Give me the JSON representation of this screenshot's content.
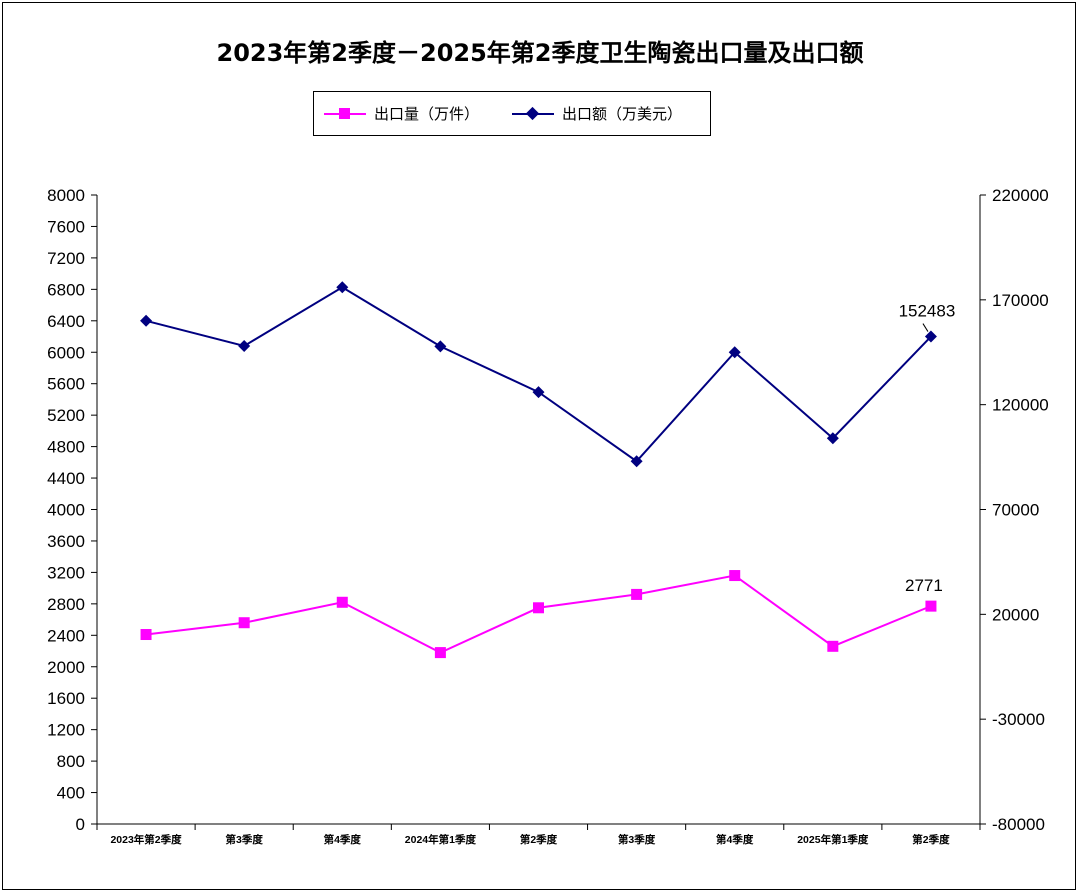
{
  "chart_data": {
    "type": "line",
    "title": "2023年第2季度－2025年第2季度卫生陶瓷出口量及出口额",
    "categories": [
      "2023年第2季度",
      "第3季度",
      "第4季度",
      "2024年第1季度",
      "第2季度",
      "第3季度",
      "第4季度",
      "2025年第1季度",
      "第2季度"
    ],
    "series": [
      {
        "name": "出口量（万件）",
        "axis": "left",
        "color": "#FF00FF",
        "marker": "square",
        "values": [
          2410,
          2560,
          2820,
          2180,
          2750,
          2920,
          3160,
          2260,
          2771
        ]
      },
      {
        "name": "出口额（万美元）",
        "axis": "right",
        "color": "#000080",
        "marker": "diamond",
        "values": [
          160000,
          148000,
          176000,
          147800,
          126000,
          93000,
          145000,
          104000,
          152483
        ]
      }
    ],
    "y_left": {
      "min": 0,
      "max": 8000,
      "step": 400
    },
    "y_right": {
      "min": -80000,
      "max": 220000,
      "step": 50000
    },
    "annotations": [
      {
        "series": 1,
        "index": 8,
        "text": "152483"
      },
      {
        "series": 0,
        "index": 8,
        "text": "2771"
      }
    ],
    "legend_position": "top",
    "grid": false
  }
}
